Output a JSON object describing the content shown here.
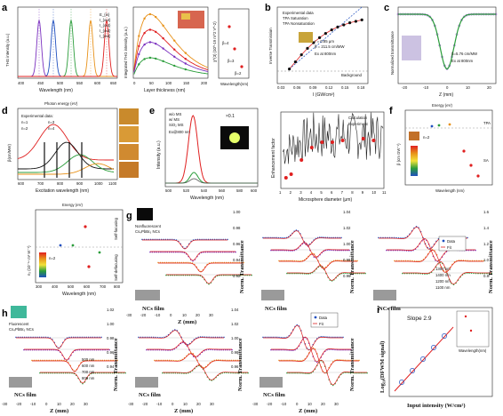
{
  "panels": {
    "a": {
      "label": "a",
      "spectra": {
        "ylabel": "THG intensity (a.u.)",
        "xlabel": "Wavelength (nm)",
        "xticks": [
          "400",
          "450",
          "500",
          "550",
          "600",
          "650"
        ],
        "legend": [
          "E_{in}",
          "I_{out}",
          "I_{out}",
          "I_{out}",
          "I_{out}"
        ]
      },
      "thickness": {
        "ylabel": "Integrated THG intensity (a.u.)",
        "xlabel": "Layer thickness (nm)",
        "xticks": [
          "0",
          "50",
          "100",
          "150",
          "200"
        ]
      },
      "inset": {
        "ylabel": "χ^(3) (10^-19 m^2 V^-2)",
        "xlabel": "Wavelength(nm)",
        "labels": [
          "β=4",
          "β=3",
          "β=2"
        ]
      }
    },
    "b": {
      "label": "b",
      "ylabel": "Inverse Transmission",
      "xlabel": "I (GW/cm²)",
      "xticks": [
        "0.03",
        "0.06",
        "0.09",
        "0.12",
        "0.15",
        "0.18"
      ],
      "legend": [
        "Experimental data",
        "TPA Saturation",
        "TPA Nonsaturation"
      ],
      "annotations": [
        "r = 0.85 μm",
        "β = 211.5 cm/MW",
        "Ex at 800nm"
      ],
      "background_label": "Background"
    },
    "c": {
      "label": "c",
      "ylabel": "Normalized transmittance",
      "xlabel": "Z (mm)",
      "xticks": [
        "-20",
        "-10",
        "0",
        "10",
        "20"
      ],
      "annotations": [
        "β=5.76 cm/MW",
        "Ex at 800nm"
      ]
    },
    "d": {
      "label": "d",
      "toplabel": "Photon energy (eV)",
      "ylabel": "β(cm/MW)",
      "xlabel": "Excitation wavelength (nm)",
      "xticks": [
        "600",
        "700",
        "800",
        "900",
        "1000",
        "1100"
      ],
      "legend_title": "Experimental data:",
      "legend": [
        "n=1",
        "n=3",
        "n=2",
        "n=4"
      ],
      "lower": {
        "toplabel": "Energy (eV)",
        "ylabel": "n₂ (10⁻¹⁴ m² W⁻¹)",
        "xlabel": "Wavelength (nm)",
        "xticks": [
          "300",
          "400",
          "500",
          "600",
          "700",
          "800"
        ],
        "annotations": [
          "Self-focusing",
          "Self-defocusing",
          "n=2"
        ]
      }
    },
    "e": {
      "label": "e",
      "spectrum": {
        "ylabel": "Intensity (a.u.)",
        "xlabel": "Wavelength (nm)",
        "xticks": [
          "500",
          "520",
          "540",
          "560",
          "580",
          "600"
        ],
        "legend": [
          "w/o MS",
          "w/ MS",
          "SiO₂ MS"
        ],
        "excitation": "Ex@800 nm",
        "scale": "×0.1"
      },
      "enhancement": {
        "ylabel": "Enhancement factor",
        "xlabel": "Microsphere diameter (μm)",
        "xticks": [
          "1",
          "2",
          "3",
          "4",
          "5",
          "6",
          "7",
          "8",
          "9",
          "10",
          "11"
        ],
        "legend": [
          "Calculation",
          "Experiment"
        ]
      }
    },
    "f": {
      "label": "f",
      "toplabel": "Energy (eV)",
      "ylabel": "β (cm GW⁻¹)",
      "xlabel": "Wavelength (nm)",
      "annotations": [
        "TPA",
        "SA",
        "n=2"
      ]
    },
    "g": {
      "label": "g",
      "caption": [
        "Nonfluorescent",
        "Cs₄PbBr₆ NCs"
      ],
      "film_label": "NCs film",
      "ylabel": "Norm. Transmittance",
      "xlabel": "Z (mm)",
      "zticks": [
        "1.00",
        "0.98",
        "0.96",
        "0.94",
        "0.92"
      ],
      "zticks2": [
        "1.04",
        "1.02",
        "1.00",
        "0.98",
        "0.96"
      ],
      "zticks3": [
        "1.6",
        "1.4",
        "1.2",
        "1.0",
        "0.8"
      ],
      "xticks": [
        "-30",
        "-20",
        "-10",
        "0",
        "10",
        "20",
        "30"
      ],
      "wavelengths": [
        "1300 nm",
        "1400 nm",
        "1200 nm",
        "1100 nm"
      ],
      "legend": [
        "Data",
        "Fit"
      ]
    },
    "h": {
      "label": "h",
      "caption": [
        "Fluorescent",
        "Cs₄PbBr₆ NCs"
      ],
      "film_label": "NCs film",
      "ylabel": "Norm. Transmittance",
      "xlabel": "Z (mm)",
      "zticks": [
        "1.02",
        "1.00",
        "0.98",
        "0.96",
        "0.94"
      ],
      "zticks2": [
        "1.04",
        "1.02",
        "1.00",
        "0.98",
        "0.96"
      ],
      "xticks": [
        "-30",
        "-20",
        "-10",
        "0",
        "10",
        "20",
        "30"
      ],
      "wavelengths": [
        "500 nm",
        "600 nm",
        "700 nm",
        "800 nm"
      ],
      "legend": [
        "Data",
        "Fit"
      ]
    },
    "i": {
      "label": "i",
      "ylabel": "Log₁₀(DFWM signal)",
      "xlabel": "Input intensity (W/cm²)",
      "slope": "Slope 2.9",
      "inset_xlabel": "Wavelength(nm)"
    }
  },
  "colors": {
    "red": "#e02020",
    "green": "#2a9d3a",
    "purple": "#7a2fbf",
    "orange": "#e8921a",
    "blue": "#1f4fbf",
    "gray": "#555555",
    "black": "#111111"
  },
  "chart_data": [
    {
      "type": "line",
      "panel": "a",
      "title": "",
      "xlabel": "Wavelength (nm)",
      "ylabel": "THG intensity (a.u.)",
      "x_range": [
        370,
        650
      ],
      "series": [
        {
          "peak": 430,
          "color": "purple"
        },
        {
          "peak": 470,
          "color": "blue"
        },
        {
          "peak": 520,
          "color": "green"
        },
        {
          "peak": 575,
          "color": "orange"
        },
        {
          "peak": 620,
          "color": "red"
        }
      ]
    },
    {
      "type": "line",
      "panel": "a2",
      "xlabel": "Layer thickness (nm)",
      "ylabel": "Integrated THG intensity (a.u.)",
      "x_range": [
        0,
        200
      ],
      "series": [
        {
          "color": "orange",
          "peak_x": 45,
          "peak_y": 1.0
        },
        {
          "color": "red",
          "peak_x": 45,
          "peak_y": 0.75
        },
        {
          "color": "purple",
          "peak_x": 45,
          "peak_y": 0.55
        },
        {
          "color": "green",
          "peak_x": 45,
          "peak_y": 0.3
        }
      ]
    },
    {
      "type": "scatter",
      "panel": "b",
      "xlabel": "I (GW/cm²)",
      "ylabel": "Inverse Transmission",
      "x_range": [
        0.03,
        0.18
      ],
      "x": [
        0.05,
        0.06,
        0.07,
        0.08,
        0.09,
        0.1,
        0.11,
        0.12,
        0.13,
        0.14,
        0.15,
        0.16,
        0.17
      ],
      "y": [
        0.18,
        0.28,
        0.38,
        0.47,
        0.55,
        0.62,
        0.68,
        0.73,
        0.77,
        0.8,
        0.83,
        0.85,
        0.87
      ]
    },
    {
      "type": "line",
      "panel": "c",
      "xlabel": "Z (mm)",
      "ylabel": "Normalized transmittance",
      "x_range": [
        -30,
        30
      ],
      "dip_depth": 0.55,
      "dip_width": 6
    },
    {
      "type": "bar",
      "panel": "e2",
      "xlabel": "Microsphere diameter (μm)",
      "ylabel": "Enhancement factor",
      "x_range": [
        1,
        11
      ]
    }
  ]
}
